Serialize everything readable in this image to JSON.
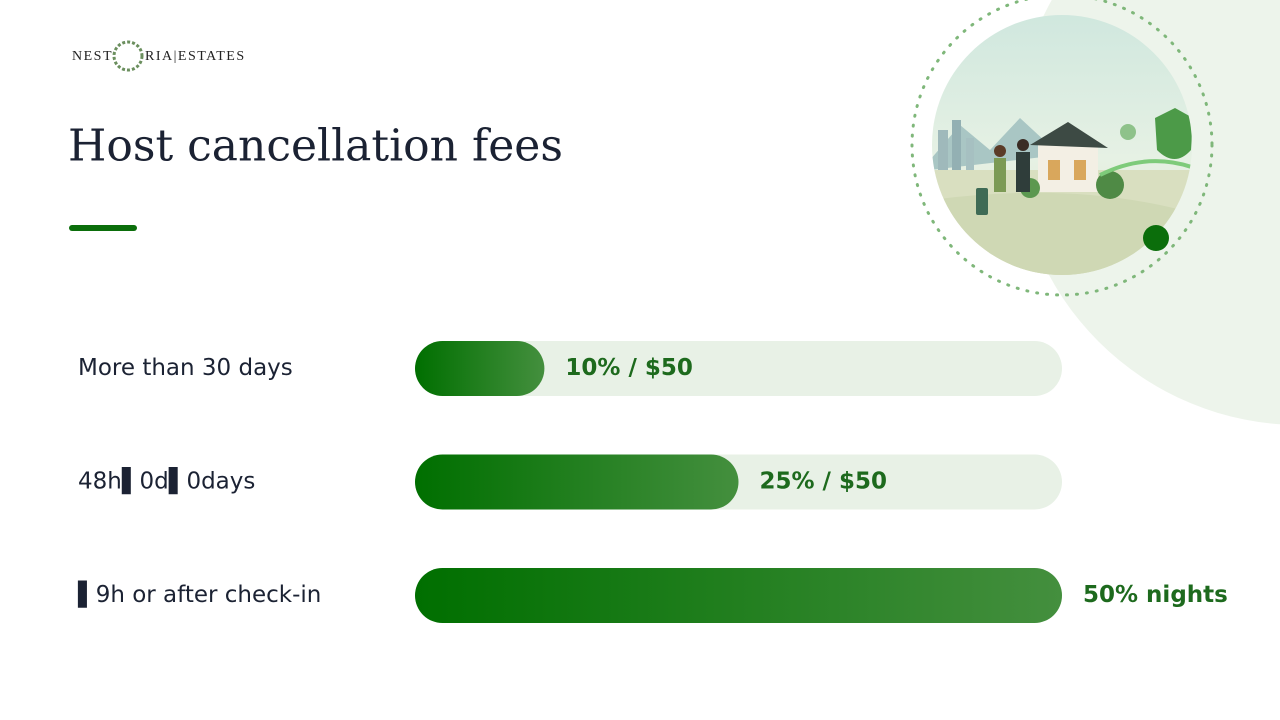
{
  "logo": {
    "left": "NEST",
    "right": "RIA|ESTATES"
  },
  "chart_data": {
    "type": "bar",
    "orientation": "horizontal",
    "title": "Host cancellation fees",
    "categories": [
      "More than 30 days",
      "48h▌0d▌0days",
      "▌9h or after check-in"
    ],
    "values": [
      10,
      25,
      50
    ],
    "value_labels": [
      "10% / $50",
      "25% / $50",
      "50% nights"
    ],
    "xlim": [
      0,
      50
    ],
    "color": "#006f00",
    "color_end": "#448f3e"
  }
}
